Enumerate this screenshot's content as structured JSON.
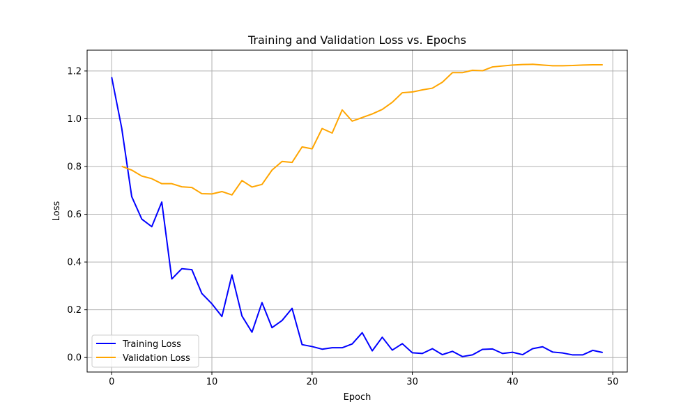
{
  "chart_data": {
    "type": "line",
    "title": "Training and Validation Loss vs. Epochs",
    "xlabel": "Epoch",
    "ylabel": "Loss",
    "xlim": [
      -2.45,
      51.45
    ],
    "ylim": [
      -0.0607,
      1.2872
    ],
    "xticks": [
      0,
      10,
      20,
      30,
      40,
      50
    ],
    "yticks": [
      0.0,
      0.2,
      0.4,
      0.6,
      0.8,
      1.0,
      1.2
    ],
    "xtick_labels": [
      "0",
      "10",
      "20",
      "30",
      "40",
      "50"
    ],
    "ytick_labels": [
      "0.0",
      "0.2",
      "0.4",
      "0.6",
      "0.8",
      "1.0",
      "1.2"
    ],
    "grid": true,
    "legend_position": "lower-left",
    "series": [
      {
        "name": "Training Loss",
        "color": "#0000ff",
        "x": [
          0,
          1,
          2,
          3,
          4,
          5,
          6,
          7,
          8,
          9,
          10,
          11,
          12,
          13,
          14,
          15,
          16,
          17,
          18,
          19,
          20,
          21,
          22,
          23,
          24,
          25,
          26,
          27,
          28,
          29,
          30,
          31,
          32,
          33,
          34,
          35,
          36,
          37,
          38,
          39,
          40,
          41,
          42,
          43,
          44,
          45,
          46,
          47,
          48,
          49
        ],
        "values": [
          1.174,
          0.961,
          0.674,
          0.58,
          0.548,
          0.651,
          0.329,
          0.372,
          0.368,
          0.268,
          0.225,
          0.172,
          0.346,
          0.174,
          0.106,
          0.23,
          0.125,
          0.155,
          0.206,
          0.054,
          0.046,
          0.035,
          0.041,
          0.041,
          0.057,
          0.104,
          0.028,
          0.085,
          0.031,
          0.058,
          0.02,
          0.017,
          0.037,
          0.012,
          0.026,
          0.004,
          0.011,
          0.034,
          0.036,
          0.017,
          0.022,
          0.012,
          0.037,
          0.045,
          0.023,
          0.019,
          0.011,
          0.011,
          0.03,
          0.021
        ]
      },
      {
        "name": "Validation Loss",
        "color": "#ffa500",
        "x": [
          1,
          2,
          3,
          4,
          5,
          6,
          7,
          8,
          9,
          10,
          11,
          12,
          13,
          14,
          15,
          16,
          17,
          18,
          19,
          20,
          21,
          22,
          23,
          24,
          25,
          26,
          27,
          28,
          29,
          30,
          31,
          32,
          33,
          34,
          35,
          36,
          37,
          38,
          39,
          40,
          41,
          42,
          43,
          44,
          45,
          46,
          47,
          48,
          49
        ],
        "values": [
          0.801,
          0.785,
          0.76,
          0.749,
          0.728,
          0.728,
          0.715,
          0.712,
          0.686,
          0.685,
          0.695,
          0.681,
          0.741,
          0.714,
          0.725,
          0.785,
          0.821,
          0.817,
          0.882,
          0.874,
          0.959,
          0.94,
          1.037,
          0.99,
          1.005,
          1.02,
          1.039,
          1.069,
          1.109,
          1.112,
          1.121,
          1.128,
          1.153,
          1.193,
          1.193,
          1.203,
          1.201,
          1.217,
          1.221,
          1.225,
          1.227,
          1.228,
          1.225,
          1.222,
          1.222,
          1.223,
          1.225,
          1.226,
          1.226
        ]
      }
    ]
  }
}
